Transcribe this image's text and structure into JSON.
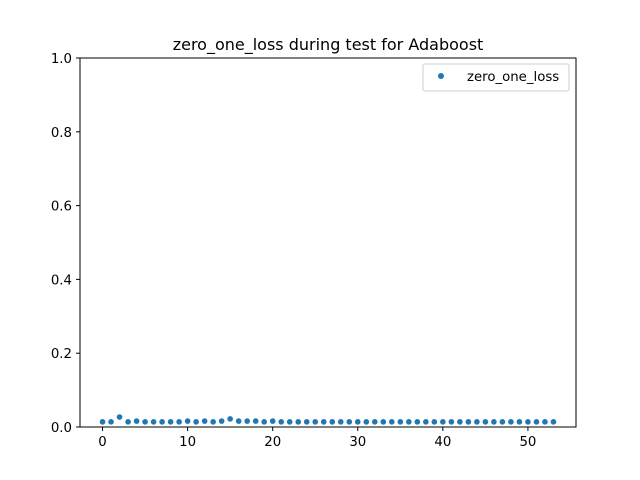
{
  "chart_data": {
    "type": "scatter",
    "title": "zero_one_loss during test for Adaboost",
    "xlabel": "",
    "ylabel": "",
    "xlim": [
      -2.65,
      55.65
    ],
    "ylim": [
      0.0,
      1.0
    ],
    "x_ticks": [
      0,
      10,
      20,
      30,
      40,
      50
    ],
    "y_ticks": [
      0.0,
      0.2,
      0.4,
      0.6,
      0.8,
      1.0
    ],
    "x_tick_labels": [
      "0",
      "10",
      "20",
      "30",
      "40",
      "50"
    ],
    "y_tick_labels": [
      "0.0",
      "0.2",
      "0.4",
      "0.6",
      "0.8",
      "1.0"
    ],
    "legend_position": "top-right",
    "grid": false,
    "series": [
      {
        "name": "zero_one_loss",
        "color": "#1f77b4",
        "x": [
          0,
          1,
          2,
          3,
          4,
          5,
          6,
          7,
          8,
          9,
          10,
          11,
          12,
          13,
          14,
          15,
          16,
          17,
          18,
          19,
          20,
          21,
          22,
          23,
          24,
          25,
          26,
          27,
          28,
          29,
          30,
          31,
          32,
          33,
          34,
          35,
          36,
          37,
          38,
          39,
          40,
          41,
          42,
          43,
          44,
          45,
          46,
          47,
          48,
          49,
          50,
          51,
          52,
          53
        ],
        "y": [
          0.014,
          0.014,
          0.027,
          0.014,
          0.016,
          0.014,
          0.014,
          0.014,
          0.014,
          0.014,
          0.016,
          0.014,
          0.016,
          0.014,
          0.016,
          0.022,
          0.016,
          0.016,
          0.016,
          0.014,
          0.016,
          0.014,
          0.014,
          0.014,
          0.014,
          0.014,
          0.014,
          0.014,
          0.014,
          0.014,
          0.014,
          0.014,
          0.014,
          0.014,
          0.014,
          0.014,
          0.014,
          0.014,
          0.014,
          0.014,
          0.014,
          0.014,
          0.014,
          0.014,
          0.014,
          0.014,
          0.014,
          0.014,
          0.014,
          0.014,
          0.014,
          0.014,
          0.014,
          0.014
        ]
      }
    ]
  }
}
